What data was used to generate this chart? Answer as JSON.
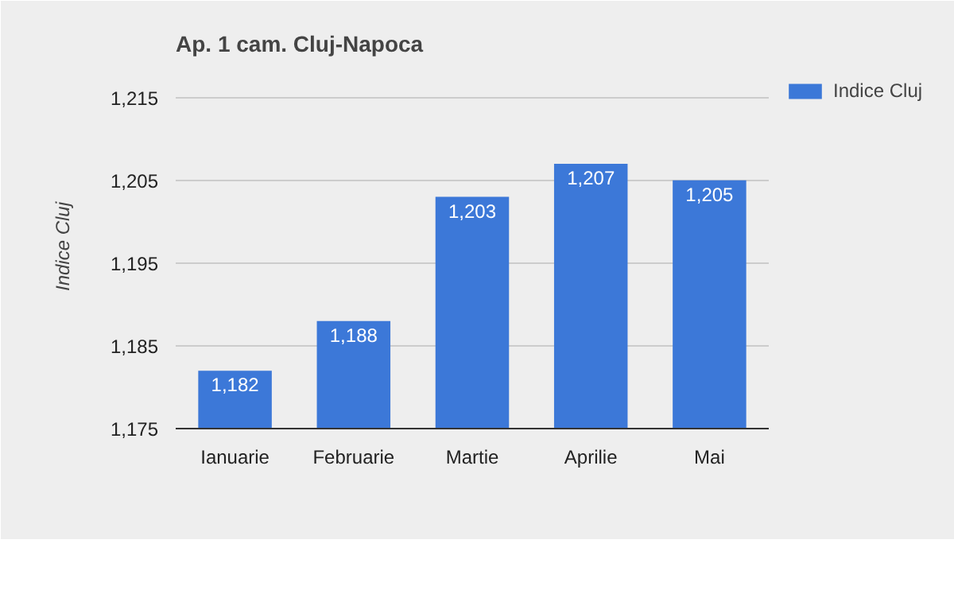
{
  "chart_data": {
    "type": "bar",
    "title": "Ap. 1 cam. Cluj-Napoca",
    "ylabel": "Indice Cluj",
    "categories": [
      "Ianuarie",
      "Februarie",
      "Martie",
      "Aprilie",
      "Mai"
    ],
    "series": [
      {
        "name": "Indice Cluj",
        "color": "#3c78d8",
        "values": [
          1182,
          1188,
          1203,
          1207,
          1205
        ],
        "value_labels": [
          "1,182",
          "1,188",
          "1,203",
          "1,207",
          "1,205"
        ]
      }
    ],
    "ylim": [
      1175,
      1219
    ],
    "yticks": [
      {
        "value": 1175,
        "label": "1,175"
      },
      {
        "value": 1185,
        "label": "1,185"
      },
      {
        "value": 1195,
        "label": "1,195"
      },
      {
        "value": 1205,
        "label": "1,205"
      },
      {
        "value": 1215,
        "label": "1,215"
      }
    ],
    "grid": "y",
    "legend": "right"
  }
}
